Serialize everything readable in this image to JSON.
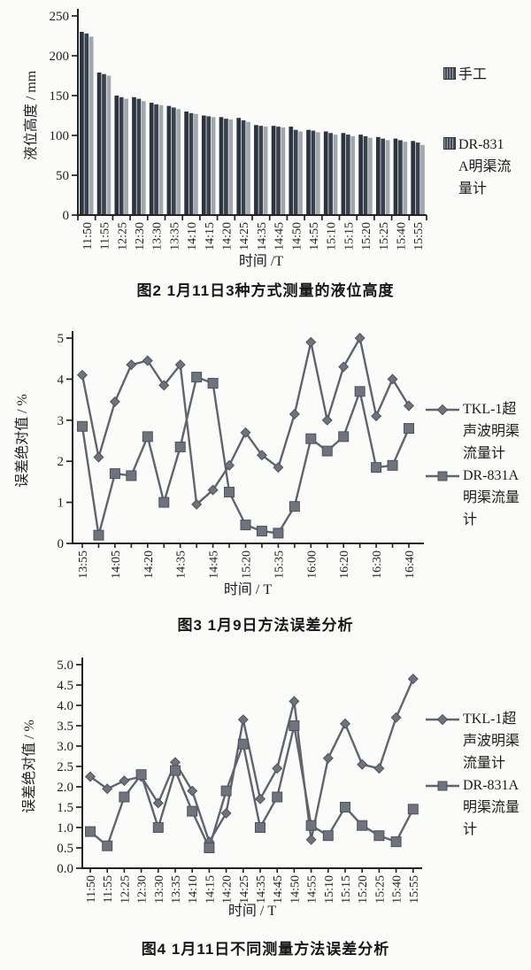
{
  "page": {
    "background": "#fbfbf9",
    "ink": "#222222"
  },
  "chart_data": [
    {
      "id": "fig2",
      "type": "bar",
      "caption": "图2  1月11日3种方式测量的液位高度",
      "xlabel": "时间 /T",
      "ylabel": "液位高度 / mm",
      "ylim": [
        0,
        250
      ],
      "ytick_step": 50,
      "ytick_decimals": 0,
      "grid": false,
      "legend_position": "right",
      "legend_entries": [
        "手工",
        "DR-831A明渠流量计"
      ],
      "categories": [
        "11:50",
        "11:55",
        "12:25",
        "12:30",
        "13:30",
        "13:35",
        "14:10",
        "14:15",
        "14:20",
        "14:25",
        "14:35",
        "14:45",
        "14:50",
        "14:55",
        "15:10",
        "15:15",
        "15:20",
        "15:25",
        "15:40",
        "15:55"
      ],
      "bar_colors": [
        "#2c333f",
        "#39414f",
        "#a2a7af"
      ],
      "series": [
        {
          "name": "手工",
          "values": [
            230,
            179,
            150,
            148,
            141,
            137,
            130,
            125,
            123,
            122,
            113,
            112,
            111,
            107,
            105,
            103,
            101,
            98,
            96,
            93
          ]
        },
        {
          "name": "",
          "values": [
            228,
            177,
            148,
            146,
            139,
            135,
            128,
            124,
            121,
            119,
            112,
            111,
            107,
            106,
            103,
            101,
            99,
            96,
            94,
            91
          ]
        },
        {
          "name": "DR-831A明渠流量计",
          "values": [
            224,
            175,
            146,
            143,
            138,
            133,
            127,
            123,
            120,
            117,
            111,
            110,
            105,
            104,
            101,
            99,
            97,
            94,
            92,
            88
          ]
        }
      ]
    },
    {
      "id": "fig3",
      "type": "line",
      "caption": "图3  1月9日方法误差分析",
      "xlabel": "时间 / T",
      "ylabel": "误差绝对值 / %",
      "ylim": [
        0,
        5
      ],
      "ytick_step": 1,
      "ytick_decimals": 0,
      "grid": false,
      "legend_position": "right",
      "line_color": "#5f646e",
      "marker_fill": "#6e737d",
      "marker_stroke": "#4d525b",
      "x_tick_labels": [
        "13:55",
        "",
        "14:05",
        "",
        "14:20",
        "",
        "14:35",
        "",
        "14:45",
        "",
        "15:20",
        "",
        "15:35",
        "",
        "16:00",
        "",
        "16:20",
        "",
        "16:30",
        "",
        "16:40"
      ],
      "series": [
        {
          "name": "TKL-1超声波明渠流量计",
          "marker": "diamond",
          "values": [
            4.1,
            2.1,
            3.45,
            4.35,
            4.45,
            3.85,
            4.35,
            0.95,
            1.3,
            1.9,
            2.7,
            2.15,
            1.85,
            3.15,
            4.9,
            3.0,
            4.3,
            5.0,
            3.1,
            4.0,
            3.35
          ]
        },
        {
          "name": "DR-831A明渠流量计",
          "marker": "square",
          "values": [
            2.85,
            0.2,
            1.7,
            1.65,
            2.6,
            1.0,
            2.35,
            4.05,
            3.9,
            1.25,
            0.45,
            0.3,
            0.25,
            0.9,
            2.55,
            2.25,
            2.6,
            3.7,
            1.85,
            1.9,
            2.8
          ]
        }
      ]
    },
    {
      "id": "fig4",
      "type": "line",
      "caption": "图4  1月11日不同测量方法误差分析",
      "xlabel": "时间 / T",
      "ylabel": "误差绝对值 / %",
      "ylim": [
        0,
        5
      ],
      "ytick_step": 0.5,
      "ytick_decimals": 1,
      "grid": false,
      "legend_position": "right",
      "line_color": "#5f646e",
      "marker_fill": "#6e737d",
      "marker_stroke": "#4d525b",
      "x_tick_labels": [
        "11:50",
        "11:55",
        "12:25",
        "12:30",
        "13:30",
        "13:35",
        "14:10",
        "14:15",
        "14:20",
        "14:25",
        "14:35",
        "14:45",
        "14:50",
        "14:55",
        "15:10",
        "15:15",
        "15:20",
        "15:25",
        "15:40",
        "15:55"
      ],
      "series": [
        {
          "name": "TKL-1超声波明渠流量计",
          "marker": "diamond",
          "values": [
            2.25,
            1.95,
            2.15,
            2.25,
            1.6,
            2.6,
            1.9,
            0.65,
            1.35,
            3.65,
            1.7,
            2.45,
            4.1,
            0.7,
            2.7,
            3.55,
            2.55,
            2.45,
            3.7,
            4.65
          ]
        },
        {
          "name": "DR-831A明渠流量计",
          "marker": "square",
          "values": [
            0.9,
            0.55,
            1.75,
            2.3,
            1.0,
            2.4,
            1.4,
            0.5,
            1.9,
            3.05,
            1.0,
            1.75,
            3.5,
            1.05,
            0.8,
            1.5,
            1.05,
            0.8,
            0.65,
            1.45
          ]
        }
      ]
    }
  ]
}
